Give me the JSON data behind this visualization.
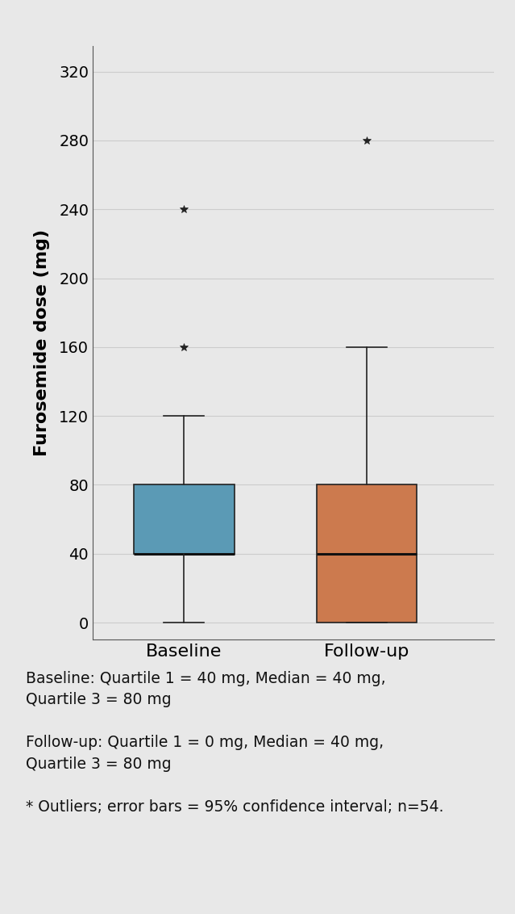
{
  "baseline": {
    "q1": 40,
    "median": 40,
    "q3": 80,
    "whisker_low": 0,
    "whisker_high": 120,
    "outliers": [
      160,
      240
    ],
    "color": "#5b9ab5",
    "label": "Baseline"
  },
  "followup": {
    "q1": 0,
    "median": 40,
    "q3": 80,
    "whisker_low": 0,
    "whisker_high": 160,
    "outliers": [
      280
    ],
    "color": "#cc7a4e",
    "label": "Follow-up"
  },
  "ylim": [
    -10,
    335
  ],
  "yticks": [
    0,
    40,
    80,
    120,
    160,
    200,
    240,
    280,
    320
  ],
  "ylabel": "Furosemide dose (mg)",
  "bg_color": "#e8e8e8",
  "panel_bg": "#b0b0b0",
  "grid_color": "#cccccc",
  "box_width": 0.55,
  "caption_lines": [
    "Baseline: Quartile 1 = 40 mg, Median = 40 mg,",
    "Quartile 3 = 80 mg",
    "",
    "Follow-up: Quartile 1 = 0 mg, Median = 40 mg,",
    "Quartile 3 = 80 mg",
    "",
    "* Outliers; error bars = 95% confidence interval; n=54."
  ]
}
